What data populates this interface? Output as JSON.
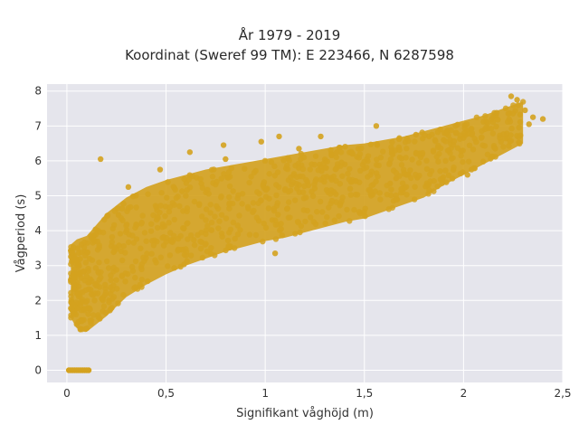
{
  "chart_data": {
    "type": "scatter",
    "title_line1": "År 1979 - 2019",
    "title_line2": "Koordinat (Sweref 99 TM): E 223466, N 6287598",
    "xlabel": "Signifikant våghöjd (m)",
    "ylabel": "Vågperiod (s)",
    "xlim": [
      -0.1,
      2.5
    ],
    "ylim": [
      -0.35,
      8.2
    ],
    "x_ticks": [
      0,
      0.5,
      1,
      1.5,
      2,
      2.5
    ],
    "x_tick_labels": [
      "0",
      "0,5",
      "1",
      "1,5",
      "2",
      "2,5"
    ],
    "y_ticks": [
      0,
      1,
      2,
      3,
      4,
      5,
      6,
      7,
      8
    ],
    "y_tick_labels": [
      "0",
      "1",
      "2",
      "3",
      "4",
      "5",
      "6",
      "7",
      "8"
    ],
    "grid": true,
    "plot_background": "#e5e5ec",
    "point_color": "#d4a21f",
    "envelope": {
      "x": [
        0.02,
        0.05,
        0.1,
        0.2,
        0.3,
        0.4,
        0.5,
        0.6,
        0.7,
        0.8,
        0.9,
        1.0,
        1.1,
        1.2,
        1.3,
        1.4,
        1.5,
        1.6,
        1.7,
        1.8,
        1.9,
        2.0,
        2.1,
        2.2,
        2.3
      ],
      "y_low": [
        1.5,
        1.2,
        1.1,
        1.55,
        2.1,
        2.45,
        2.75,
        3.0,
        3.2,
        3.4,
        3.55,
        3.7,
        3.8,
        3.95,
        4.1,
        4.25,
        4.35,
        4.55,
        4.75,
        4.95,
        5.3,
        5.6,
        5.9,
        6.2,
        6.5
      ],
      "y_high": [
        3.6,
        3.75,
        3.85,
        4.5,
        4.95,
        5.25,
        5.45,
        5.6,
        5.75,
        5.85,
        5.95,
        6.05,
        6.15,
        6.25,
        6.35,
        6.45,
        6.5,
        6.6,
        6.7,
        6.85,
        7.0,
        7.15,
        7.3,
        7.5,
        7.7
      ]
    },
    "zero_period_points": {
      "x": [
        0.01,
        0.02,
        0.03,
        0.04,
        0.05,
        0.06,
        0.07,
        0.08,
        0.09,
        0.1,
        0.11
      ],
      "y": [
        0,
        0,
        0,
        0,
        0,
        0,
        0,
        0,
        0,
        0,
        0
      ]
    },
    "outliers": {
      "x": [
        0.17,
        0.26,
        0.31,
        0.47,
        0.62,
        0.79,
        0.8,
        0.98,
        1.05,
        1.07,
        1.08,
        1.17,
        1.28,
        1.36,
        1.53,
        1.56,
        1.63,
        1.66,
        1.66,
        1.76,
        1.9,
        2.02,
        2.04,
        2.16,
        2.24,
        2.27,
        2.31,
        2.33,
        2.35,
        2.4
      ],
      "y": [
        6.05,
        4.45,
        5.25,
        5.75,
        6.25,
        6.45,
        6.05,
        6.55,
        3.35,
        6.7,
        4.05,
        6.35,
        6.7,
        6.25,
        5.15,
        7.0,
        5.35,
        4.9,
        5.5,
        6.75,
        6.6,
        5.6,
        5.75,
        6.35,
        7.85,
        7.75,
        7.45,
        7.05,
        7.25,
        7.2
      ]
    }
  }
}
